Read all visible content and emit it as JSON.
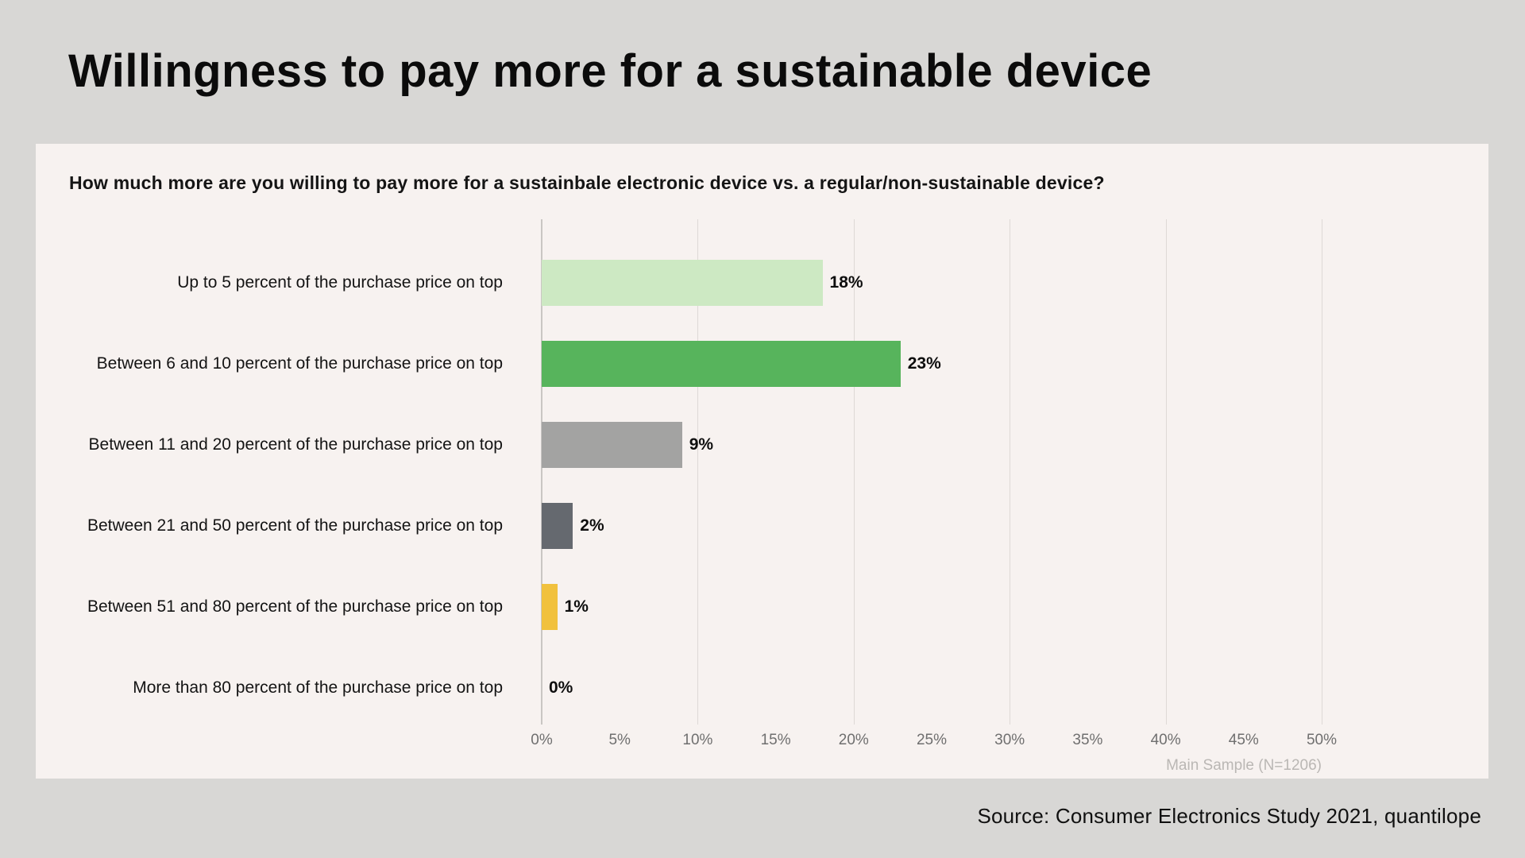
{
  "page": {
    "title": "Willingness to pay more for a sustainable device",
    "source": "Source: Consumer Electronics Study 2021, quantilope",
    "background_color": "#d8d7d5",
    "card_background_color": "#f7f2f0"
  },
  "chart_data": {
    "type": "bar",
    "orientation": "horizontal",
    "title": "How much more are you willing to pay more for a sustainbale electronic device vs. a regular/non-sustainable device?",
    "categories": [
      "Up to 5 percent of the purchase price on top",
      "Between 6 and 10 percent of the purchase price on top",
      "Between 11 and 20 percent of the purchase price on top",
      "Between 21 and 50 percent of the purchase price on top",
      "Between 51 and 80 percent of the purchase price on top",
      "More than 80 percent of the purchase price on top"
    ],
    "values": [
      18,
      23,
      9,
      2,
      1,
      0
    ],
    "value_labels": [
      "18%",
      "23%",
      "9%",
      "2%",
      "1%",
      "0%"
    ],
    "bar_colors": [
      "#cde9c3",
      "#57b45c",
      "#a3a3a2",
      "#65696f",
      "#f1c13d",
      "#a3a3a2"
    ],
    "xlabel": "",
    "ylabel": "",
    "xlim": [
      0,
      50
    ],
    "x_ticks": [
      "0%",
      "5%",
      "10%",
      "15%",
      "20%",
      "25%",
      "30%",
      "35%",
      "40%",
      "45%",
      "50%"
    ],
    "gridline_step": 10,
    "grid": "vertical",
    "legend": "none",
    "note": "Main Sample (N=1206)"
  }
}
